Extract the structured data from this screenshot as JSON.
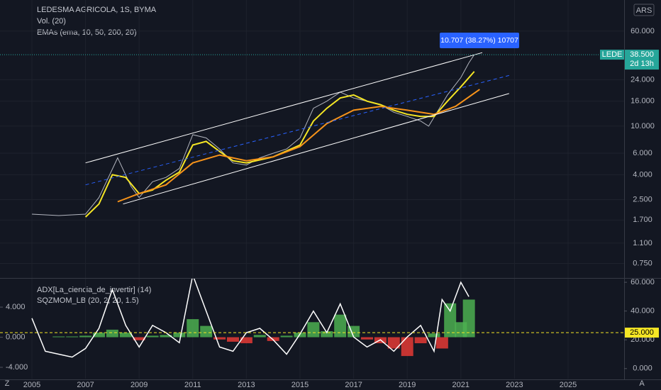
{
  "chart_data": [
    {
      "type": "line",
      "title": "LEDESMA AGRICOLA, 1S, BYMA",
      "legend": [
        "Vol. (20)",
        "EMAs (ema, 10, 50, 200, 20)"
      ],
      "log_scale": true,
      "grid": true,
      "currency": "ARS",
      "symbol_label": "LEDE",
      "last_price": {
        "value": 38.5,
        "label": "38.500"
      },
      "countdown": "2d 13h",
      "annotation": "10.707 (38.27%) 10707",
      "xlim": [
        2003.81,
        2027.09
      ],
      "ylim": [
        0.57,
        108
      ],
      "yticks": [
        {
          "value": 60,
          "label": "60.000"
        },
        {
          "value": 24,
          "label": "24.000"
        },
        {
          "value": 16,
          "label": "16.000"
        },
        {
          "value": 10,
          "label": "10.000"
        },
        {
          "value": 6,
          "label": "6.000"
        },
        {
          "value": 4,
          "label": "4.000"
        },
        {
          "value": 2.5,
          "label": "2.500"
        },
        {
          "value": 1.7,
          "label": "1.700"
        },
        {
          "value": 1.1,
          "label": "1.100"
        },
        {
          "value": 0.75,
          "label": "0.750"
        }
      ],
      "series": [
        {
          "color": "#b2b5be",
          "width": 1,
          "x": [
            2005,
            2006,
            2007,
            2007.5,
            2008.2,
            2008.7,
            2009,
            2009.5,
            2010,
            2010.5,
            2011,
            2011.5,
            2012,
            2012.5,
            2013,
            2013.5,
            2014,
            2014.5,
            2015,
            2015.5,
            2016,
            2016.5,
            2017,
            2017.5,
            2018,
            2018.5,
            2019,
            2019.5,
            2019.8,
            2020.2,
            2020.5,
            2021,
            2021.3,
            2021.5
          ],
          "values": [
            1.9,
            1.85,
            1.9,
            2.6,
            5.5,
            3.2,
            2.6,
            3.5,
            3.8,
            4.5,
            8.5,
            8,
            6.5,
            5,
            4.8,
            5.5,
            6,
            6.5,
            8,
            14,
            16,
            19,
            17,
            16,
            15,
            13,
            12,
            11,
            10,
            14,
            18,
            25,
            33,
            38.5
          ]
        },
        {
          "color": "#f5e625",
          "width": 2,
          "x": [
            2007,
            2007.5,
            2008,
            2008.5,
            2009,
            2009.5,
            2010,
            2010.5,
            2011,
            2011.5,
            2012,
            2012.5,
            2013,
            2014,
            2015,
            2015.5,
            2016,
            2016.5,
            2017,
            2017.5,
            2018,
            2018.5,
            2019,
            2019.5,
            2020,
            2020.5,
            2021,
            2021.5
          ],
          "values": [
            1.8,
            2.3,
            4.0,
            3.8,
            2.8,
            3.0,
            3.6,
            4.2,
            7.0,
            7.5,
            6.2,
            5.2,
            5.0,
            5.6,
            7.0,
            11,
            14,
            17,
            18,
            16,
            15,
            13.5,
            12.5,
            12,
            12,
            16,
            21,
            28
          ]
        },
        {
          "color": "#f7931a",
          "width": 2,
          "x": [
            2008.2,
            2009,
            2010,
            2011,
            2012,
            2013,
            2014,
            2015,
            2016,
            2017,
            2018,
            2019,
            2020,
            2020.8,
            2021.7
          ],
          "values": [
            2.4,
            2.8,
            3.3,
            5,
            5.8,
            5.2,
            5.6,
            6.8,
            10.5,
            13.5,
            14.5,
            13.5,
            12.5,
            14.5,
            20
          ]
        },
        {
          "color": "#ffffff",
          "width": 1,
          "x": [
            2007,
            2021.8
          ],
          "values": [
            5,
            40
          ]
        },
        {
          "color": "#2962ff",
          "width": 1,
          "dashed": true,
          "x": [
            2007,
            2022.8
          ],
          "values": [
            3.3,
            26
          ]
        },
        {
          "color": "#ffffff",
          "width": 1,
          "x": [
            2008.4,
            2022.8
          ],
          "values": [
            2.3,
            18.5
          ]
        }
      ]
    },
    {
      "type": "line",
      "legend": [
        "ADX[La_ciencia_de_invertir] (14)",
        "SQZMOM_LB (20, 2, 20, 1.5)"
      ],
      "xlim": [
        2003.81,
        2027.09
      ],
      "xticks": [
        2005,
        2007,
        2009,
        2011,
        2013,
        2015,
        2017,
        2019,
        2021,
        2023,
        2025
      ],
      "ylim": [
        -5.6,
        7.87
      ],
      "yticks": [
        {
          "value": 4,
          "label": "4.000"
        },
        {
          "value": 0,
          "label": "0.000"
        },
        {
          "value": -4,
          "label": "-4.000"
        }
      ],
      "y2lim": [
        -7.5,
        63
      ],
      "y2ticks": [
        {
          "value": 60,
          "label": "60.000"
        },
        {
          "value": 40,
          "label": "40.000"
        },
        {
          "value": 20,
          "label": "20.000"
        },
        {
          "value": 0,
          "label": "0.000"
        }
      ],
      "threshold": {
        "value": 25,
        "label": "25.000",
        "color": "#f5e625"
      },
      "series": [
        {
          "type": "histogram",
          "color": "#4caf50",
          "negative_color": "#e53935",
          "x": [
            2005,
            2005.5,
            2006,
            2006.5,
            2007,
            2007.5,
            2008,
            2008.5,
            2009,
            2009.5,
            2010,
            2010.5,
            2011,
            2011.5,
            2012,
            2012.5,
            2013,
            2013.5,
            2014,
            2014.5,
            2015,
            2015.5,
            2016,
            2016.5,
            2017,
            2017.5,
            2018,
            2018.5,
            2019,
            2019.5,
            2020,
            2020.3,
            2020.6,
            2021,
            2021.3
          ],
          "values": [
            0,
            0,
            0.1,
            0.1,
            0.2,
            0.6,
            1.0,
            0.6,
            -0.4,
            0.2,
            0.3,
            0.6,
            2.4,
            1.5,
            -0.3,
            -0.6,
            -0.8,
            0.3,
            -0.5,
            0.2,
            0.6,
            2.0,
            0.8,
            3.0,
            1.5,
            -0.3,
            -0.8,
            -1.5,
            -2.5,
            -0.8,
            0.5,
            -1.5,
            4.5,
            2.0,
            5.0
          ]
        },
        {
          "type": "line",
          "axis": "y2",
          "color": "#ffffff",
          "x": [
            2005,
            2005.5,
            2006,
            2006.5,
            2007,
            2007.5,
            2008,
            2008.5,
            2009,
            2009.5,
            2010,
            2010.5,
            2011,
            2011.5,
            2012,
            2012.5,
            2013,
            2013.5,
            2014,
            2014.5,
            2015,
            2015.5,
            2016,
            2016.5,
            2017,
            2017.5,
            2018,
            2018.5,
            2019,
            2019.5,
            2020,
            2020.3,
            2020.6,
            2021,
            2021.3
          ],
          "values": [
            35,
            12,
            10,
            8,
            14,
            28,
            55,
            30,
            15,
            30,
            25,
            18,
            65,
            40,
            15,
            12,
            25,
            28,
            20,
            10,
            24,
            40,
            25,
            45,
            22,
            15,
            20,
            12,
            22,
            30,
            12,
            48,
            40,
            60,
            50
          ]
        }
      ]
    }
  ],
  "toolbar": {
    "left": "Z",
    "right": "A"
  }
}
